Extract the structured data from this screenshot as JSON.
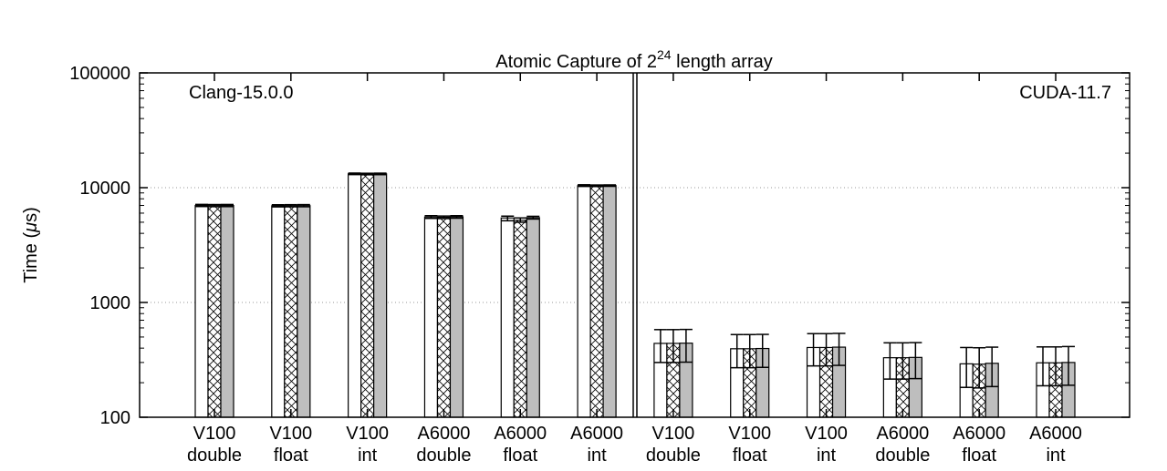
{
  "chart_data": {
    "type": "bar",
    "title_main": "Atomic Capture of 2",
    "title_sup": "24",
    "title_rest": " length array",
    "ylabel_main": "Time (",
    "ylabel_mu": "μ",
    "ylabel_rest": "s)",
    "yscale": "log",
    "ylim": [
      100,
      100000
    ],
    "yticks": [
      {
        "value": 100,
        "label": "100"
      },
      {
        "value": 1000,
        "label": "1000"
      },
      {
        "value": 10000,
        "label": "10000"
      },
      {
        "value": 100000,
        "label": "100000"
      }
    ],
    "grid": "horizontal dotted at major ticks",
    "categories": [
      {
        "line1": "V100",
        "line2": "double"
      },
      {
        "line1": "V100",
        "line2": "float"
      },
      {
        "line1": "V100",
        "line2": "int"
      },
      {
        "line1": "A6000",
        "line2": "double"
      },
      {
        "line1": "A6000",
        "line2": "float"
      },
      {
        "line1": "A6000",
        "line2": "int"
      },
      {
        "line1": "V100",
        "line2": "double"
      },
      {
        "line1": "V100",
        "line2": "float"
      },
      {
        "line1": "V100",
        "line2": "int"
      },
      {
        "line1": "A6000",
        "line2": "double"
      },
      {
        "line1": "A6000",
        "line2": "float"
      },
      {
        "line1": "A6000",
        "line2": "int"
      }
    ],
    "panels": [
      {
        "label": "Clang-15.0.0",
        "label_position": "top-left",
        "categories": [
          0,
          1,
          2,
          3,
          4,
          5
        ]
      },
      {
        "label": "CUDA-11.7",
        "label_position": "top-right",
        "categories": [
          6,
          7,
          8,
          9,
          10,
          11
        ]
      }
    ],
    "series": [
      {
        "pattern": "white",
        "values": [
          7000,
          6950,
          13200,
          5550,
          5450,
          10400,
          440,
          395,
          405,
          330,
          292,
          298
        ],
        "err_low": [
          6850,
          6800,
          13000,
          5400,
          5150,
          10250,
          300,
          270,
          280,
          215,
          182,
          188
        ],
        "err_high": [
          7150,
          7100,
          13400,
          5700,
          5650,
          10600,
          580,
          525,
          535,
          445,
          405,
          410
        ]
      },
      {
        "pattern": "cross-hatch",
        "values": [
          6980,
          6960,
          13150,
          5520,
          5200,
          10380,
          440,
          395,
          405,
          330,
          290,
          298
        ],
        "err_low": [
          6830,
          6810,
          12950,
          5380,
          5000,
          10230,
          300,
          270,
          280,
          215,
          180,
          188
        ],
        "err_high": [
          7130,
          7110,
          13350,
          5660,
          5450,
          10550,
          580,
          525,
          535,
          445,
          403,
          410
        ]
      },
      {
        "pattern": "gray",
        "values": [
          6990,
          6970,
          13180,
          5560,
          5480,
          10420,
          442,
          397,
          408,
          332,
          295,
          300
        ],
        "err_low": [
          6840,
          6820,
          12980,
          5420,
          5330,
          10270,
          302,
          272,
          283,
          217,
          185,
          190
        ],
        "err_high": [
          7140,
          7120,
          13380,
          5700,
          5630,
          10570,
          582,
          527,
          538,
          447,
          408,
          413
        ]
      }
    ]
  }
}
